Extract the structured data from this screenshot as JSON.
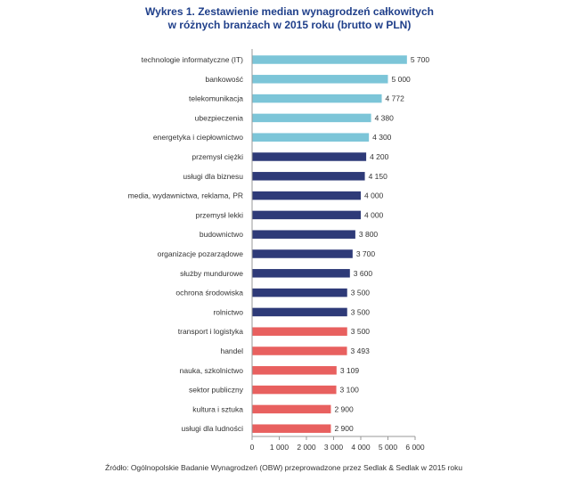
{
  "chart_data": {
    "type": "bar",
    "orientation": "horizontal",
    "title_line1": "Wykres 1. Zestawienie median wynagrodzeń całkowitych",
    "title_line2": "w różnych branżach w 2015 roku (brutto w PLN)",
    "categories": [
      "technologie informatyczne (IT)",
      "bankowość",
      "telekomunikacja",
      "ubezpieczenia",
      "energetyka i ciepłownictwo",
      "przemysł ciężki",
      "usługi dla biznesu",
      "media, wydawnictwa, reklama, PR",
      "przemysł lekki",
      "budownictwo",
      "organizacje pozarządowe",
      "służby mundurowe",
      "ochrona środowiska",
      "rolnictwo",
      "transport i logistyka",
      "handel",
      "nauka, szkolnictwo",
      "sektor publiczny",
      "kultura i sztuka",
      "usługi dla ludności"
    ],
    "values": [
      5700,
      5000,
      4772,
      4380,
      4300,
      4200,
      4150,
      4000,
      4000,
      3800,
      3700,
      3600,
      3500,
      3500,
      3500,
      3493,
      3109,
      3100,
      2900,
      2900
    ],
    "value_labels": [
      "5 700",
      "5 000",
      "4 772",
      "4 380",
      "4 300",
      "4 200",
      "4 150",
      "4 000",
      "4 000",
      "3 800",
      "3 700",
      "3 600",
      "3 500",
      "3 500",
      "3 500",
      "3 493",
      "3 109",
      "3 100",
      "2 900",
      "2 900"
    ],
    "bar_colors": [
      "#7cc5d8",
      "#7cc5d8",
      "#7cc5d8",
      "#7cc5d8",
      "#7cc5d8",
      "#2e3a78",
      "#2e3a78",
      "#2e3a78",
      "#2e3a78",
      "#2e3a78",
      "#2e3a78",
      "#2e3a78",
      "#2e3a78",
      "#2e3a78",
      "#e8605f",
      "#e8605f",
      "#e8605f",
      "#e8605f",
      "#e8605f",
      "#e8605f"
    ],
    "x_ticks": [
      0,
      1000,
      2000,
      3000,
      4000,
      5000,
      6000
    ],
    "x_tick_labels": [
      "0",
      "1 000",
      "2 000",
      "3 000",
      "4 000",
      "5 000",
      "6 000"
    ],
    "xlim": [
      0,
      6000
    ],
    "grid": false
  },
  "source_note": "Źródło: Ogólnopolskie Badanie Wynagrodzeń (OBW) przeprowadzone przez Sedlak & Sedlak w 2015 roku"
}
